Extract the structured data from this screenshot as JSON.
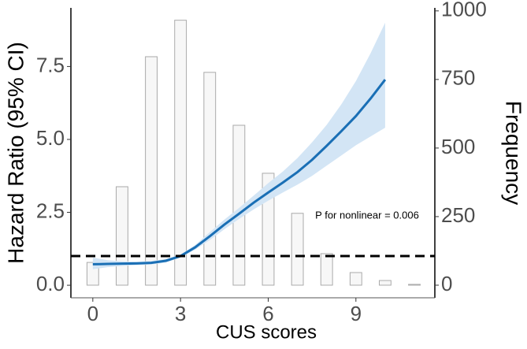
{
  "chart_data": {
    "type": "combo",
    "xlabel": "CUS scores",
    "ylabel": "Hazard Ratio (95% CI)",
    "y2label": "Frequency",
    "annotation": "P for nonlinear = 0.006",
    "xlim": [
      -0.75,
      11.7
    ],
    "xticks": [
      0,
      3,
      6,
      9
    ],
    "ylim": [
      -0.43,
      9.51
    ],
    "yticks": [
      {
        "value": 0,
        "label": "0.0"
      },
      2.5,
      {
        "value": 5,
        "label": "5.0"
      },
      7.5
    ],
    "y2lim": [
      -46,
      1011
    ],
    "y2ticks": [
      0,
      250,
      500,
      750,
      1000
    ],
    "reference_line": 1,
    "series": [
      {
        "type": "bar",
        "axis": "y2",
        "color": "#f7f7f7",
        "edgecolor": "#aaaaaa",
        "x": [
          0,
          1,
          2,
          3,
          4,
          5,
          6,
          7,
          8,
          9,
          10,
          11
        ],
        "values": [
          83,
          359,
          833,
          966,
          776,
          583,
          408,
          262,
          115,
          46,
          17,
          3
        ]
      },
      {
        "type": "line",
        "color": "#1a6fb5",
        "band_color": "#d3e5f5",
        "x": [
          0,
          0.5,
          1,
          1.5,
          2,
          2.5,
          3,
          3.5,
          4,
          4.5,
          5,
          5.5,
          6,
          6.5,
          7,
          7.5,
          8,
          8.5,
          9,
          9.5,
          10
        ],
        "values": [
          0.72,
          0.73,
          0.74,
          0.75,
          0.77,
          0.84,
          1.0,
          1.3,
          1.68,
          2.08,
          2.45,
          2.83,
          3.18,
          3.52,
          3.88,
          4.3,
          4.78,
          5.28,
          5.8,
          6.4,
          7.05
        ],
        "lower": [
          0.55,
          0.62,
          0.66,
          0.69,
          0.71,
          0.78,
          0.95,
          1.22,
          1.55,
          1.92,
          2.27,
          2.6,
          2.9,
          3.18,
          3.45,
          3.75,
          4.1,
          4.45,
          4.8,
          5.1,
          5.4
        ],
        "upper": [
          0.95,
          0.86,
          0.82,
          0.81,
          0.83,
          0.9,
          1.05,
          1.38,
          1.82,
          2.25,
          2.65,
          3.07,
          3.5,
          3.9,
          4.36,
          4.9,
          5.5,
          6.2,
          7.0,
          7.95,
          9.0
        ]
      }
    ]
  }
}
